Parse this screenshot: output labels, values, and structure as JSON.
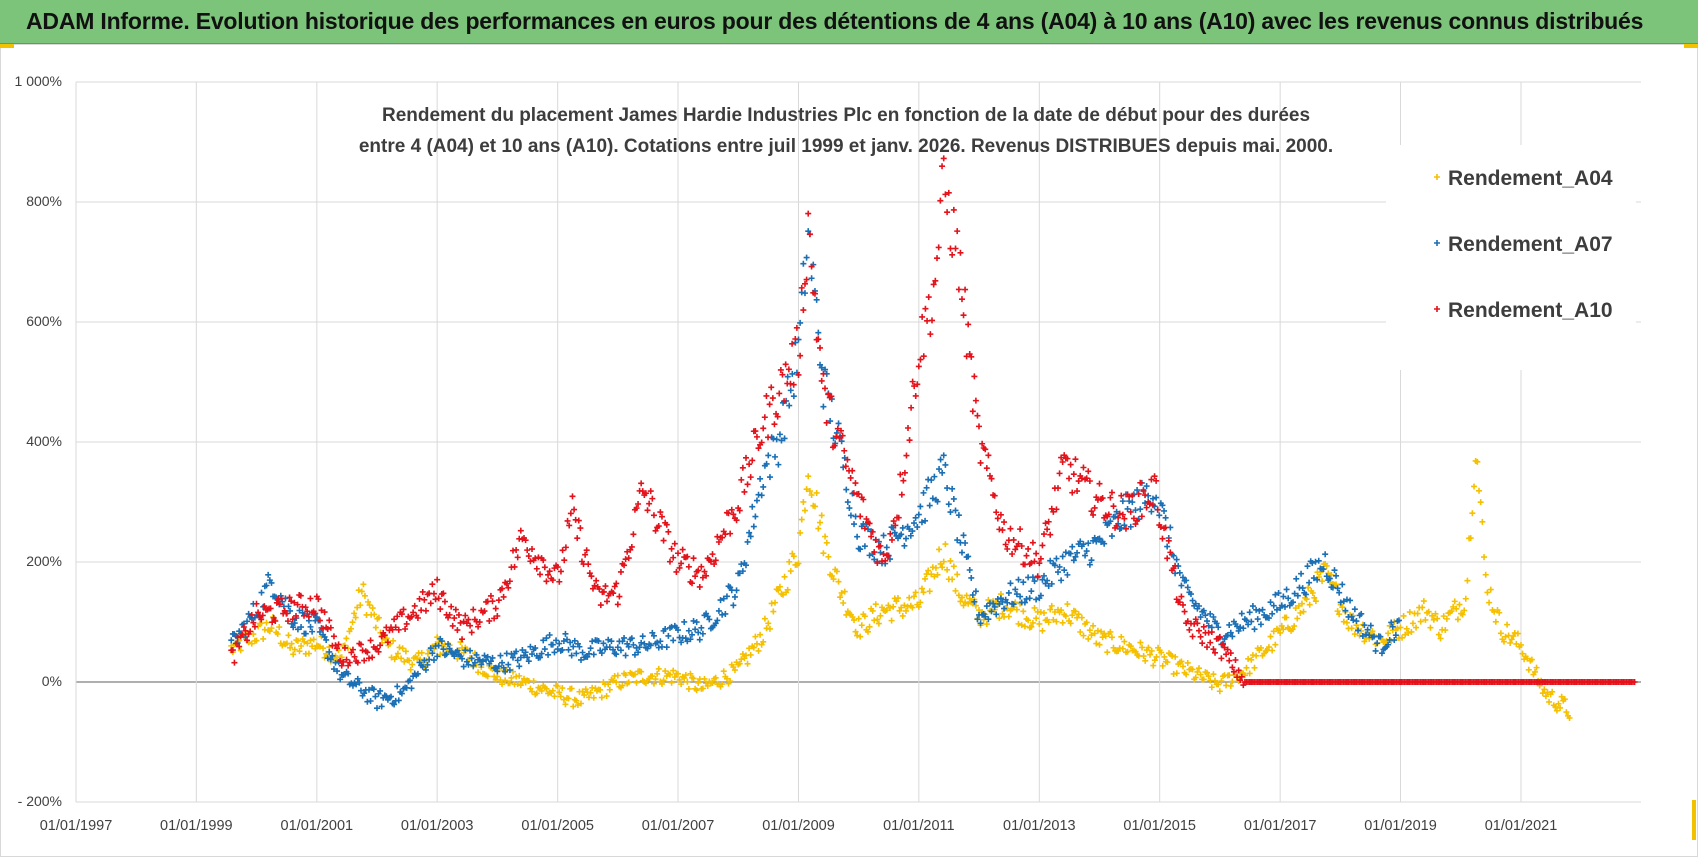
{
  "banner": {
    "title": "ADAM Informe. Evolution historique des performances en euros pour des détentions de 4 ans (A04) à 10 ans (A10) avec les revenus connus distribués"
  },
  "colors": {
    "banner_bg": "#7cc47a",
    "A04": "#f5c000",
    "A07": "#1a6fb5",
    "A10": "#e3121b",
    "grid": "#d9d9d9",
    "axis": "#7f7f7f"
  },
  "chart_data": {
    "type": "scatter",
    "title_line1": "Rendement du placement James Hardie Industries Plc en fonction de la date de début pour des durées",
    "title_line2": "entre 4 (A04) et 10 ans (A10). Cotations entre juil 1999 et janv. 2026. Revenus DISTRIBUES depuis mai. 2000.",
    "xlabel": "",
    "ylabel": "",
    "x_ticks": [
      "01/01/1997",
      "01/01/1999",
      "01/01/2001",
      "01/01/2003",
      "01/01/2005",
      "01/01/2007",
      "01/01/2009",
      "01/01/2011",
      "01/01/2013",
      "01/01/2015",
      "01/01/2017",
      "01/01/2019",
      "01/01/2021"
    ],
    "y_ticks": [
      -200,
      0,
      200,
      400,
      600,
      800,
      1000
    ],
    "y_tick_labels": [
      "- 200%",
      "0%",
      "200%",
      "400%",
      "600%",
      "800%",
      "1 000%"
    ],
    "xlim": [
      "1997-01-01",
      "2023-01-01"
    ],
    "ylim": [
      -200,
      1000
    ],
    "grid": true,
    "legend_position": "top-right",
    "marker": "+",
    "series": [
      {
        "name": "Rendement_A04",
        "color": "#f5c000",
        "points": [
          [
            "1999-08-01",
            55
          ],
          [
            "2000-01-01",
            80
          ],
          [
            "2000-04-01",
            95
          ],
          [
            "2000-08-01",
            55
          ],
          [
            "2001-01-01",
            65
          ],
          [
            "2001-06-01",
            40
          ],
          [
            "2001-10-01",
            150
          ],
          [
            "2002-03-01",
            60
          ],
          [
            "2002-09-01",
            30
          ],
          [
            "2003-01-01",
            60
          ],
          [
            "2003-06-01",
            50
          ],
          [
            "2004-01-01",
            10
          ],
          [
            "2004-06-01",
            0
          ],
          [
            "2005-01-01",
            -20
          ],
          [
            "2005-06-01",
            -30
          ],
          [
            "2006-01-01",
            0
          ],
          [
            "2006-06-01",
            10
          ],
          [
            "2007-01-01",
            10
          ],
          [
            "2007-06-01",
            -10
          ],
          [
            "2008-01-01",
            20
          ],
          [
            "2008-06-01",
            80
          ],
          [
            "2008-09-01",
            140
          ],
          [
            "2009-01-01",
            220
          ],
          [
            "2009-03-01",
            360
          ],
          [
            "2009-06-01",
            240
          ],
          [
            "2009-09-01",
            160
          ],
          [
            "2010-01-01",
            90
          ],
          [
            "2010-06-01",
            120
          ],
          [
            "2011-01-01",
            130
          ],
          [
            "2011-06-01",
            220
          ],
          [
            "2011-09-01",
            150
          ],
          [
            "2012-01-01",
            110
          ],
          [
            "2012-06-01",
            130
          ],
          [
            "2013-01-01",
            100
          ],
          [
            "2013-06-01",
            120
          ],
          [
            "2014-01-01",
            70
          ],
          [
            "2014-06-01",
            60
          ],
          [
            "2015-01-01",
            40
          ],
          [
            "2015-06-01",
            20
          ],
          [
            "2016-01-01",
            -5
          ],
          [
            "2016-06-01",
            20
          ],
          [
            "2017-01-01",
            80
          ],
          [
            "2017-06-01",
            130
          ],
          [
            "2017-10-01",
            180
          ],
          [
            "2018-03-01",
            100
          ],
          [
            "2018-09-01",
            70
          ],
          [
            "2019-01-01",
            90
          ],
          [
            "2019-06-01",
            120
          ],
          [
            "2019-09-01",
            90
          ],
          [
            "2020-02-01",
            140
          ],
          [
            "2020-04-01",
            400
          ],
          [
            "2020-06-01",
            170
          ],
          [
            "2020-09-01",
            90
          ],
          [
            "2021-01-01",
            60
          ],
          [
            "2021-06-01",
            -20
          ],
          [
            "2021-11-01",
            -50
          ]
        ]
      },
      {
        "name": "Rendement_A07",
        "color": "#1a6fb5",
        "points": [
          [
            "1999-08-01",
            60
          ],
          [
            "2000-01-01",
            120
          ],
          [
            "2000-04-01",
            170
          ],
          [
            "2000-08-01",
            110
          ],
          [
            "2001-01-01",
            90
          ],
          [
            "2001-06-01",
            10
          ],
          [
            "2002-01-01",
            -30
          ],
          [
            "2002-06-01",
            -20
          ],
          [
            "2003-01-01",
            60
          ],
          [
            "2003-06-01",
            40
          ],
          [
            "2004-01-01",
            30
          ],
          [
            "2004-06-01",
            40
          ],
          [
            "2005-01-01",
            70
          ],
          [
            "2005-06-01",
            50
          ],
          [
            "2006-01-01",
            60
          ],
          [
            "2006-06-01",
            60
          ],
          [
            "2007-01-01",
            80
          ],
          [
            "2007-06-01",
            90
          ],
          [
            "2008-01-01",
            160
          ],
          [
            "2008-06-01",
            350
          ],
          [
            "2008-09-01",
            400
          ],
          [
            "2009-01-01",
            550
          ],
          [
            "2009-03-01",
            750
          ],
          [
            "2009-06-01",
            500
          ],
          [
            "2009-09-01",
            400
          ],
          [
            "2010-01-01",
            250
          ],
          [
            "2010-06-01",
            220
          ],
          [
            "2011-01-01",
            280
          ],
          [
            "2011-06-01",
            350
          ],
          [
            "2011-09-01",
            250
          ],
          [
            "2012-01-01",
            110
          ],
          [
            "2012-06-01",
            140
          ],
          [
            "2013-01-01",
            160
          ],
          [
            "2013-06-01",
            200
          ],
          [
            "2014-01-01",
            230
          ],
          [
            "2014-06-01",
            280
          ],
          [
            "2014-12-01",
            320
          ],
          [
            "2015-06-01",
            150
          ],
          [
            "2016-01-01",
            80
          ],
          [
            "2016-06-01",
            100
          ],
          [
            "2017-01-01",
            130
          ],
          [
            "2017-10-01",
            200
          ],
          [
            "2018-03-01",
            120
          ],
          [
            "2018-09-01",
            60
          ],
          [
            "2019-01-01",
            100
          ]
        ]
      },
      {
        "name": "Rendement_A10",
        "color": "#e3121b",
        "points": [
          [
            "1999-08-01",
            40
          ],
          [
            "2000-01-01",
            110
          ],
          [
            "2000-06-01",
            120
          ],
          [
            "2001-01-01",
            130
          ],
          [
            "2001-06-01",
            40
          ],
          [
            "2002-01-01",
            60
          ],
          [
            "2002-06-01",
            100
          ],
          [
            "2003-01-01",
            150
          ],
          [
            "2003-06-01",
            90
          ],
          [
            "2004-01-01",
            130
          ],
          [
            "2004-06-01",
            240
          ],
          [
            "2005-01-01",
            170
          ],
          [
            "2005-04-01",
            280
          ],
          [
            "2005-09-01",
            140
          ],
          [
            "2006-01-01",
            150
          ],
          [
            "2006-06-01",
            320
          ],
          [
            "2007-01-01",
            200
          ],
          [
            "2007-06-01",
            180
          ],
          [
            "2008-01-01",
            300
          ],
          [
            "2008-06-01",
            430
          ],
          [
            "2009-01-01",
            550
          ],
          [
            "2009-03-01",
            760
          ],
          [
            "2009-06-01",
            480
          ],
          [
            "2010-01-01",
            300
          ],
          [
            "2010-06-01",
            200
          ],
          [
            "2010-09-01",
            300
          ],
          [
            "2011-01-01",
            550
          ],
          [
            "2011-04-01",
            650
          ],
          [
            "2011-06-01",
            830
          ],
          [
            "2011-09-01",
            700
          ],
          [
            "2012-01-01",
            400
          ],
          [
            "2012-06-01",
            250
          ],
          [
            "2013-01-01",
            200
          ],
          [
            "2013-06-01",
            360
          ],
          [
            "2014-01-01",
            300
          ],
          [
            "2014-06-01",
            280
          ],
          [
            "2014-12-01",
            320
          ],
          [
            "2015-06-01",
            100
          ],
          [
            "2016-01-01",
            60
          ],
          [
            "2016-06-01",
            0
          ],
          [
            "2018-01-01",
            0
          ],
          [
            "2020-01-01",
            0
          ],
          [
            "2022-01-01",
            0
          ],
          [
            "2022-12-01",
            0
          ]
        ]
      }
    ]
  }
}
